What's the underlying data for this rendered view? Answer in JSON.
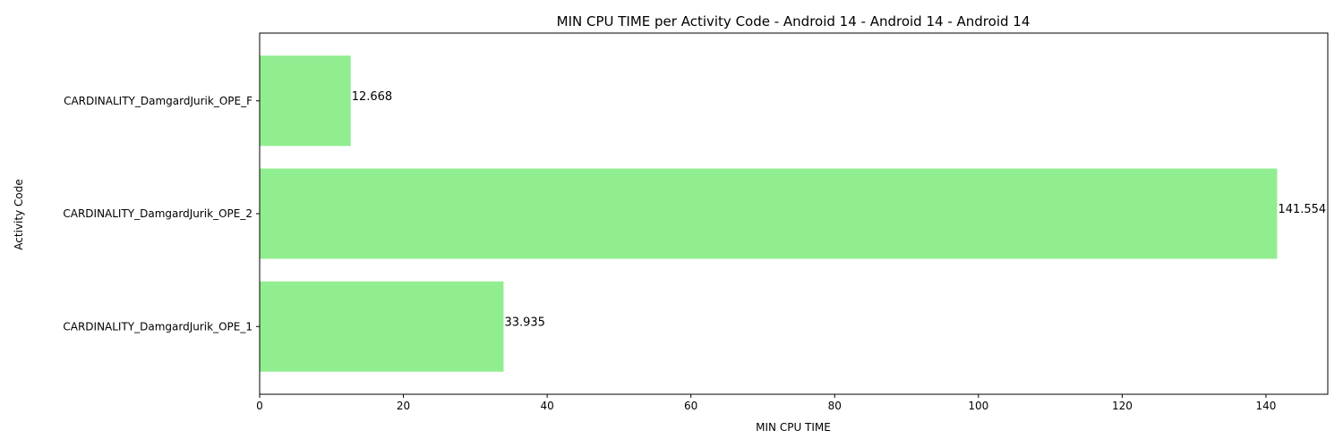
{
  "chart_data": {
    "type": "bar",
    "orientation": "horizontal",
    "title": "MIN CPU TIME per Activity Code - Android 14 - Android 14 - Android 14",
    "xlabel": "MIN CPU TIME",
    "ylabel": "Activity Code",
    "categories": [
      "CARDINALITY_DamgardJurik_OPE_1",
      "CARDINALITY_DamgardJurik_OPE_2",
      "CARDINALITY_DamgardJurik_OPE_F"
    ],
    "values": [
      33.935,
      141.554,
      12.668
    ],
    "data_labels": [
      "33.935",
      "141.554",
      "12.668"
    ],
    "xlim": [
      0,
      148.6
    ],
    "xticks": [
      0,
      20,
      40,
      60,
      80,
      100,
      120,
      140
    ],
    "bar_color": "#90ee90",
    "grid": false,
    "legend": "none"
  }
}
